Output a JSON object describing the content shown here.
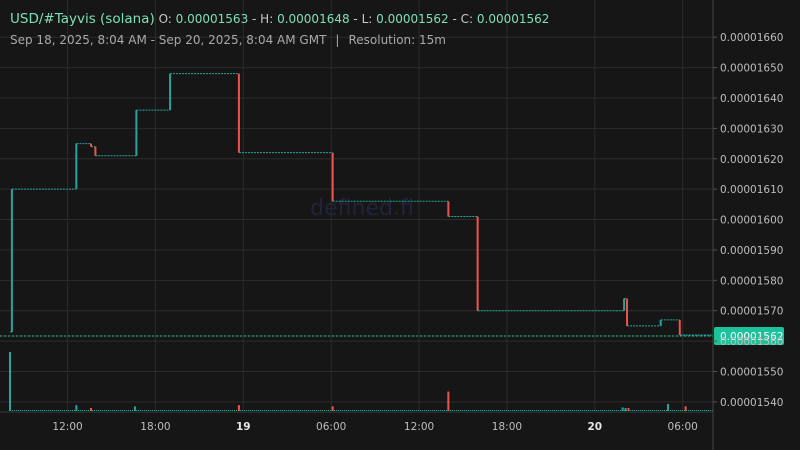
{
  "header": {
    "symbol": "USD/#Tayvis (solana)",
    "o_label": "O:",
    "o_value": "0.00001563",
    "h_label": "H:",
    "h_value": "0.00001648",
    "l_label": "L:",
    "l_value": "0.00001562",
    "c_label": "C:",
    "c_value": "0.00001562",
    "date_range": "Sep 18, 2025, 8:04 AM - Sep 20, 2025, 8:04 AM GMT",
    "resolution": "Resolution: 15m"
  },
  "watermark": "defined.fi",
  "colors": {
    "background": "#161616",
    "grid": "#2b2b2b",
    "up": "#26a69a",
    "down": "#ef5350",
    "last_price": "#1bc29a"
  },
  "chart_data": {
    "type": "line",
    "style": "step price line with volume bars",
    "x_tick_labels": [
      "12:00",
      "18:00",
      "19",
      "06:00",
      "12:00",
      "18:00",
      "20",
      "06:00"
    ],
    "x_tick_hours": [
      12,
      18,
      24,
      30,
      36,
      42,
      48,
      54
    ],
    "y_tick_labels": [
      "0.00001540",
      "0.00001550",
      "0.00001560",
      "0.00001570",
      "0.00001580",
      "0.00001590",
      "0.00001600",
      "0.00001610",
      "0.00001620",
      "0.00001630",
      "0.00001640",
      "0.00001650",
      "0.00001660"
    ],
    "ylim": [
      1.537e-05,
      1.665e-05
    ],
    "xlim_hours": [
      8.07,
      56.07
    ],
    "last_price_label": "0.00001562",
    "last_price": 1.562e-05,
    "grid": true,
    "price_series": {
      "x_hours": [
        8.07,
        8.2,
        12.6,
        13.6,
        13.9,
        16.7,
        19.0,
        23.7,
        30.1,
        38.0,
        40.0,
        50.0,
        50.2,
        52.5,
        53.8,
        56.07
      ],
      "values": [
        1.563e-05,
        1.61e-05,
        1.625e-05,
        1.624e-05,
        1.621e-05,
        1.636e-05,
        1.648e-05,
        1.622e-05,
        1.606e-05,
        1.601e-05,
        1.57e-05,
        1.574e-05,
        1.565e-05,
        1.567e-05,
        1.562e-05,
        1.562e-05
      ]
    },
    "volume_series": {
      "x_hours": [
        8.07,
        12.6,
        13.6,
        16.6,
        23.7,
        30.1,
        38.0,
        49.9,
        50.1,
        50.3,
        53.0,
        54.2
      ],
      "values": [
        1.0,
        0.1,
        0.05,
        0.08,
        0.1,
        0.08,
        0.33,
        0.06,
        0.05,
        0.05,
        0.12,
        0.08
      ],
      "direction": [
        "up",
        "up",
        "down",
        "up",
        "down",
        "down",
        "down",
        "up",
        "up",
        "down",
        "up",
        "down"
      ]
    }
  }
}
